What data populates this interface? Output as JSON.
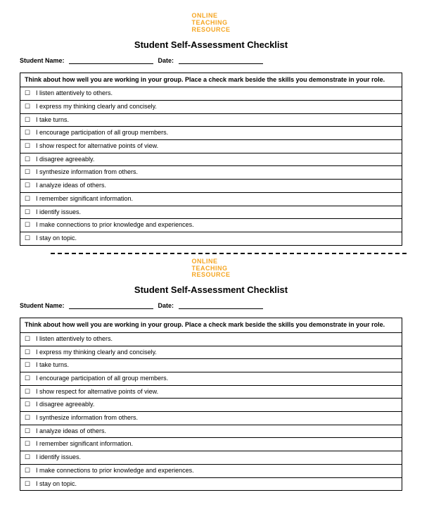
{
  "logo": {
    "line1": "ONLINE",
    "line2": "TEACHING",
    "line3": "RESOURCE",
    "color": "#f5a623"
  },
  "title": "Student Self-Assessment Checklist",
  "form": {
    "name_label": "Student Name:",
    "date_label": "Date:"
  },
  "instruction": "Think about how well you are working in your group. Place a check mark beside the skills you demonstrate in your role.",
  "checkbox_symbol": "☐",
  "items": [
    "I listen attentively to others.",
    "I express my thinking clearly and concisely.",
    "I take turns.",
    "I encourage participation of all group members.",
    "I show respect for alternative points of view.",
    "I disagree agreeably.",
    "I synthesize information from others.",
    "I analyze ideas of others.",
    "I remember significant information.",
    "I identify issues.",
    "I make connections to prior knowledge and experiences.",
    "I stay on topic."
  ],
  "colors": {
    "text": "#000000",
    "background": "#ffffff",
    "border": "#000000"
  }
}
